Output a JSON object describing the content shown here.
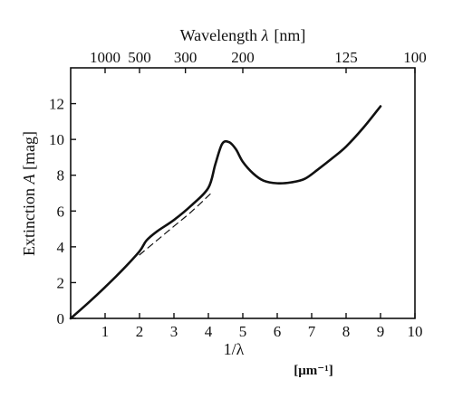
{
  "chart_data": {
    "type": "line",
    "top_axis_label": "Wavelength λ [nm]",
    "top_axis_label_text": "Wavelength ",
    "top_axis_label_symbol": "λ",
    "top_axis_label_unit": "[nm]",
    "top_ticks": [
      {
        "label": "1000",
        "x": 1.0
      },
      {
        "label": "500",
        "x": 2.0
      },
      {
        "label": "300",
        "x": 3.333
      },
      {
        "label": "200",
        "x": 5.0
      },
      {
        "label": "125",
        "x": 8.0
      },
      {
        "label": "100",
        "x": 10.0
      }
    ],
    "ylabel": "Extinction A [mag]",
    "ylabel_text": "Extinction ",
    "ylabel_symbol": "A",
    "ylabel_unit": " [mag]",
    "xlabel": "1/λ",
    "x_unit": "[μm⁻¹]",
    "xlim": [
      0,
      10
    ],
    "ylim": [
      0,
      14
    ],
    "x_ticks": [
      0,
      1,
      2,
      3,
      4,
      5,
      6,
      7,
      8,
      9,
      10
    ],
    "x_tick_labels": [
      "",
      "1",
      "2",
      "3",
      "4",
      "5",
      "6",
      "7",
      "8",
      "9",
      "10"
    ],
    "y_ticks": [
      0,
      2,
      4,
      6,
      8,
      10,
      12
    ],
    "y_tick_labels": [
      "0",
      "2",
      "4",
      "6",
      "8",
      "10",
      "12"
    ],
    "grid": false,
    "series": [
      {
        "style": "solid",
        "x": [
          0,
          0.5,
          1.0,
          1.5,
          2.0,
          2.2,
          2.5,
          3.0,
          3.5,
          4.0,
          4.2,
          4.4,
          4.6,
          4.8,
          5.0,
          5.3,
          5.6,
          6.0,
          6.4,
          6.8,
          7.2,
          7.6,
          8.0,
          8.5,
          9.0
        ],
        "y": [
          0,
          0.85,
          1.75,
          2.7,
          3.75,
          4.35,
          4.85,
          5.5,
          6.3,
          7.3,
          8.6,
          9.75,
          9.85,
          9.45,
          8.75,
          8.1,
          7.7,
          7.55,
          7.6,
          7.8,
          8.35,
          8.95,
          9.6,
          10.65,
          11.85
        ]
      },
      {
        "style": "dashed",
        "x": [
          2.0,
          2.5,
          3.0,
          3.5,
          4.0,
          4.1
        ],
        "y": [
          3.55,
          4.35,
          5.15,
          5.95,
          6.85,
          7.05
        ]
      }
    ]
  }
}
